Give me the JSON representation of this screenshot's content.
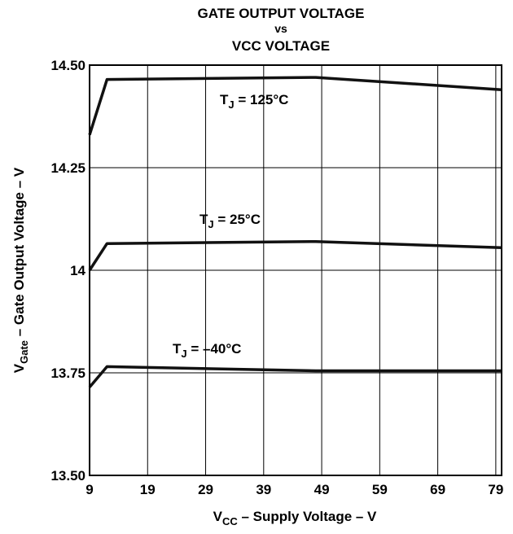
{
  "chart_data": {
    "type": "line",
    "title_lines": [
      "GATE OUTPUT VOLTAGE",
      "vs",
      "VCC VOLTAGE"
    ],
    "xlabel": {
      "main": "V",
      "sub": "CC",
      "rest": " – Supply Voltage – V"
    },
    "ylabel": {
      "main": "V",
      "sub": "Gate",
      "rest": "  – Gate Output Voltage – V"
    },
    "xlim": [
      9,
      80
    ],
    "ylim": [
      13.5,
      14.5
    ],
    "x_ticks": [
      9,
      19,
      29,
      39,
      49,
      59,
      69,
      79
    ],
    "y_ticks": [
      {
        "value": 14.5,
        "label": "14.50"
      },
      {
        "value": 14.25,
        "label": "14.25"
      },
      {
        "value": 14.0,
        "label": "14"
      },
      {
        "value": 13.75,
        "label": "13.75"
      },
      {
        "value": 13.5,
        "label": "13.50"
      }
    ],
    "grid": true,
    "series": [
      {
        "label_main": "T",
        "label_sub": "J",
        "label_rest": " = 125°C",
        "x": [
          9,
          12,
          48,
          80
        ],
        "y": [
          14.33,
          14.465,
          14.47,
          14.44
        ]
      },
      {
        "label_main": "T",
        "label_sub": "J",
        "label_rest": " = 25°C",
        "x": [
          9,
          12,
          48,
          80
        ],
        "y": [
          14.0,
          14.065,
          14.07,
          14.055
        ]
      },
      {
        "label_main": "T",
        "label_sub": "J",
        "label_rest": " = –40°C",
        "x": [
          9,
          12,
          48,
          80
        ],
        "y": [
          13.715,
          13.765,
          13.755,
          13.755
        ]
      }
    ]
  }
}
